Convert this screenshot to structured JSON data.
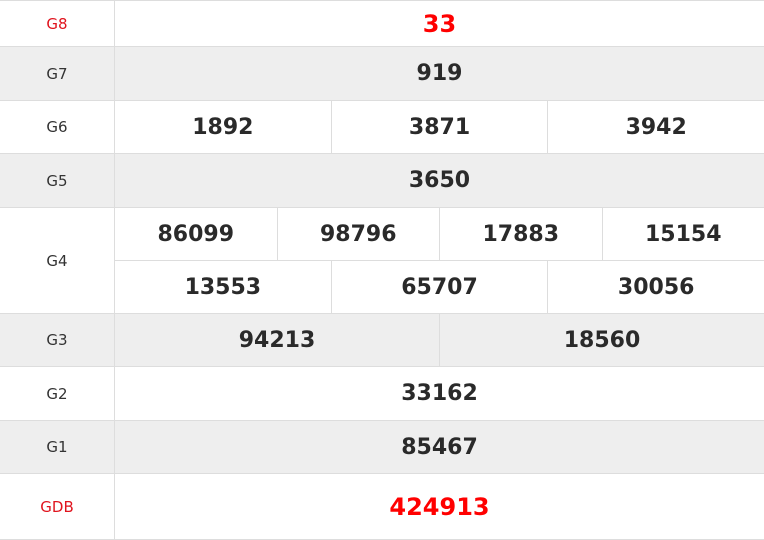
{
  "accent_color": "#ff0000",
  "rows": [
    {
      "label": "G8",
      "red": true,
      "lines": [
        [
          "33"
        ]
      ]
    },
    {
      "label": "G7",
      "lines": [
        [
          "919"
        ]
      ]
    },
    {
      "label": "G6",
      "lines": [
        [
          "1892",
          "3871",
          "3942"
        ]
      ]
    },
    {
      "label": "G5",
      "lines": [
        [
          "3650"
        ]
      ]
    },
    {
      "label": "G4",
      "lines": [
        [
          "86099",
          "98796",
          "17883",
          "15154"
        ],
        [
          "13553",
          "65707",
          "30056"
        ]
      ]
    },
    {
      "label": "G3",
      "lines": [
        [
          "94213",
          "18560"
        ]
      ]
    },
    {
      "label": "G2",
      "lines": [
        [
          "33162"
        ]
      ]
    },
    {
      "label": "G1",
      "lines": [
        [
          "85467"
        ]
      ]
    },
    {
      "label": "GDB",
      "red": true,
      "lines": [
        [
          "424913"
        ]
      ]
    }
  ]
}
